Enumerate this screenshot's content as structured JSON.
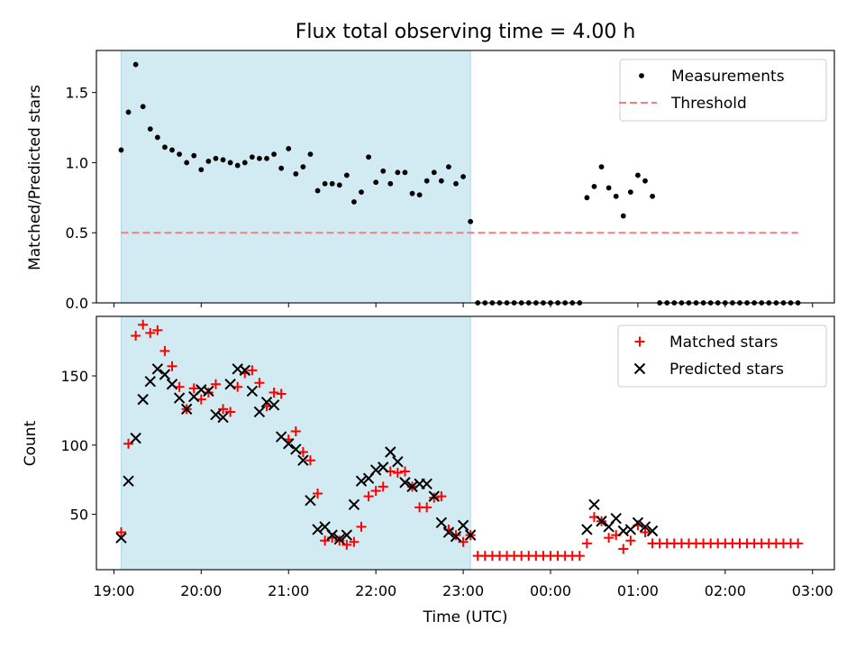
{
  "chart_data": [
    {
      "type": "scatter",
      "title": "Flux total observing time = 4.00 h",
      "xlabel": "",
      "ylabel": "Matched/Predicted stars",
      "xlim": [
        "18:48",
        "03:15"
      ],
      "ylim": [
        0,
        1.8
      ],
      "yticks": [
        "0.0",
        "0.5",
        "1.0",
        "1.5"
      ],
      "shaded_region": [
        "19:05",
        "23:05"
      ],
      "shade_color": "#add8e6",
      "legend_position": "top-right",
      "series": [
        {
          "name": "Measurements",
          "kind": "point",
          "color": "#000000",
          "x": [
            "19:05",
            "19:10",
            "19:15",
            "19:20",
            "19:25",
            "19:30",
            "19:35",
            "19:40",
            "19:45",
            "19:50",
            "19:55",
            "20:00",
            "20:05",
            "20:10",
            "20:15",
            "20:20",
            "20:25",
            "20:30",
            "20:35",
            "20:40",
            "20:45",
            "20:50",
            "20:55",
            "21:00",
            "21:05",
            "21:10",
            "21:15",
            "21:20",
            "21:25",
            "21:30",
            "21:35",
            "21:40",
            "21:45",
            "21:50",
            "21:55",
            "22:00",
            "22:05",
            "22:10",
            "22:15",
            "22:20",
            "22:25",
            "22:30",
            "22:35",
            "22:40",
            "22:45",
            "22:50",
            "22:55",
            "23:00",
            "23:05",
            "23:10",
            "23:15",
            "23:20",
            "23:25",
            "23:30",
            "23:35",
            "23:40",
            "23:45",
            "23:50",
            "23:55",
            "00:00",
            "00:05",
            "00:10",
            "00:15",
            "00:20",
            "00:25",
            "00:30",
            "00:35",
            "00:40",
            "00:45",
            "00:50",
            "00:55",
            "01:00",
            "01:05",
            "01:10",
            "01:15",
            "01:20",
            "01:25",
            "01:30",
            "01:35",
            "01:40",
            "01:45",
            "01:50",
            "01:55",
            "02:00",
            "02:05",
            "02:10",
            "02:15",
            "02:20",
            "02:25",
            "02:30",
            "02:35",
            "02:40",
            "02:45",
            "02:50"
          ],
          "y": [
            1.09,
            1.36,
            1.7,
            1.4,
            1.24,
            1.18,
            1.11,
            1.09,
            1.06,
            1.0,
            1.05,
            0.95,
            1.01,
            1.03,
            1.02,
            1.0,
            0.98,
            1.0,
            1.04,
            1.03,
            1.03,
            1.06,
            0.96,
            1.1,
            0.92,
            0.97,
            1.06,
            0.8,
            0.85,
            0.85,
            0.84,
            0.91,
            0.72,
            0.79,
            1.04,
            0.86,
            0.94,
            0.85,
            0.93,
            0.93,
            0.78,
            0.77,
            0.87,
            0.93,
            0.87,
            0.97,
            0.85,
            0.9,
            0.58,
            0,
            0,
            0,
            0,
            0,
            0,
            0,
            0,
            0,
            0,
            0,
            0,
            0,
            0,
            0,
            0.75,
            0.83,
            0.97,
            0.82,
            0.76,
            0.62,
            0.79,
            0.91,
            0.87,
            0.76,
            0,
            0,
            0,
            0,
            0,
            0,
            0,
            0,
            0,
            0,
            0,
            0,
            0,
            0,
            0,
            0,
            0,
            0,
            0,
            0
          ]
        },
        {
          "name": "Threshold",
          "kind": "dashed-line",
          "color": "#f08080",
          "x": [
            "19:05",
            "02:50"
          ],
          "y": [
            0.5,
            0.5
          ]
        }
      ]
    },
    {
      "type": "scatter",
      "title": "",
      "xlabel": "Time (UTC)",
      "ylabel": "Count",
      "xlim": [
        "18:48",
        "03:15"
      ],
      "ylim": [
        10,
        193
      ],
      "yticks": [
        "50",
        "100",
        "150"
      ],
      "xticks": [
        "19:00",
        "20:00",
        "21:00",
        "22:00",
        "23:00",
        "00:00",
        "01:00",
        "02:00",
        "03:00"
      ],
      "shaded_region": [
        "19:05",
        "23:05"
      ],
      "shade_color": "#add8e6",
      "legend_position": "top-right",
      "series": [
        {
          "name": "Matched stars",
          "kind": "plus",
          "color": "#ff0000",
          "x": [
            "19:05",
            "19:10",
            "19:15",
            "19:20",
            "19:25",
            "19:30",
            "19:35",
            "19:40",
            "19:45",
            "19:50",
            "19:55",
            "20:00",
            "20:05",
            "20:10",
            "20:15",
            "20:20",
            "20:25",
            "20:30",
            "20:35",
            "20:40",
            "20:45",
            "20:50",
            "20:55",
            "21:00",
            "21:05",
            "21:10",
            "21:15",
            "21:20",
            "21:25",
            "21:30",
            "21:35",
            "21:40",
            "21:45",
            "21:50",
            "21:55",
            "22:00",
            "22:05",
            "22:10",
            "22:15",
            "22:20",
            "22:25",
            "22:30",
            "22:35",
            "22:40",
            "22:45",
            "22:50",
            "22:55",
            "23:00",
            "23:05",
            "23:10",
            "23:15",
            "23:20",
            "23:25",
            "23:30",
            "23:35",
            "23:40",
            "23:45",
            "23:50",
            "23:55",
            "00:00",
            "00:05",
            "00:10",
            "00:15",
            "00:20",
            "00:25",
            "00:30",
            "00:35",
            "00:40",
            "00:45",
            "00:50",
            "00:55",
            "01:00",
            "01:05",
            "01:10",
            "01:15",
            "01:20",
            "01:25",
            "01:30",
            "01:35",
            "01:40",
            "01:45",
            "01:50",
            "01:55",
            "02:00",
            "02:05",
            "02:10",
            "02:15",
            "02:20",
            "02:25",
            "02:30",
            "02:35",
            "02:40",
            "02:45",
            "02:50"
          ],
          "y": [
            37,
            101,
            179,
            187,
            181,
            183,
            168,
            157,
            142,
            126,
            141,
            133,
            138,
            144,
            126,
            124,
            142,
            152,
            154,
            145,
            128,
            138,
            137,
            104,
            110,
            95,
            89,
            65,
            31,
            33,
            31,
            28,
            30,
            41,
            63,
            67,
            70,
            81,
            80,
            81,
            70,
            55,
            55,
            62,
            63,
            39,
            35,
            30,
            35,
            20,
            20,
            20,
            20,
            20,
            20,
            20,
            20,
            20,
            20,
            20,
            20,
            20,
            20,
            20,
            29,
            48,
            45,
            33,
            35,
            25,
            31,
            42,
            37,
            29,
            29,
            29,
            29,
            29,
            29,
            29,
            29,
            29,
            29,
            29,
            29,
            29,
            29,
            29,
            29,
            29,
            29,
            29,
            29,
            29
          ]
        },
        {
          "name": "Predicted stars",
          "kind": "x",
          "color": "#000000",
          "x": [
            "19:05",
            "19:10",
            "19:15",
            "19:20",
            "19:25",
            "19:30",
            "19:35",
            "19:40",
            "19:45",
            "19:50",
            "19:55",
            "20:00",
            "20:05",
            "20:10",
            "20:15",
            "20:20",
            "20:25",
            "20:30",
            "20:35",
            "20:40",
            "20:45",
            "20:50",
            "20:55",
            "21:00",
            "21:05",
            "21:10",
            "21:15",
            "21:20",
            "21:25",
            "21:30",
            "21:35",
            "21:40",
            "21:45",
            "21:50",
            "21:55",
            "22:00",
            "22:05",
            "22:10",
            "22:15",
            "22:20",
            "22:25",
            "22:30",
            "22:35",
            "22:40",
            "22:45",
            "22:50",
            "22:55",
            "23:00",
            "23:05",
            "00:25",
            "00:30",
            "00:35",
            "00:40",
            "00:45",
            "00:50",
            "00:55",
            "01:00",
            "01:05",
            "01:10"
          ],
          "y": [
            33,
            74,
            105,
            133,
            146,
            155,
            151,
            144,
            134,
            126,
            135,
            140,
            139,
            122,
            120,
            144,
            155,
            154,
            139,
            124,
            131,
            129,
            106,
            101,
            97,
            89,
            60,
            39,
            41,
            35,
            32,
            35,
            57,
            74,
            76,
            82,
            84,
            95,
            88,
            73,
            70,
            72,
            72,
            63,
            44,
            37,
            34,
            42,
            35,
            39,
            57,
            45,
            41,
            47,
            38,
            39,
            44,
            41,
            38
          ]
        }
      ]
    }
  ]
}
